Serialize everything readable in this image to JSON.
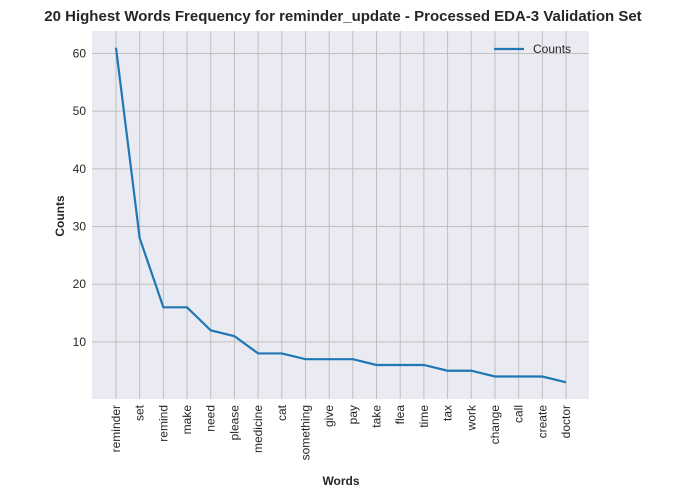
{
  "chart_data": {
    "type": "line",
    "title": "20 Highest Words Frequency for reminder_update - Processed EDA-3 Validation Set",
    "xlabel": "Words",
    "ylabel": "Counts",
    "categories": [
      "reminder",
      "set",
      "remind",
      "make",
      "need",
      "please",
      "medicine",
      "cat",
      "something",
      "give",
      "pay",
      "take",
      "flea",
      "time",
      "tax",
      "work",
      "change",
      "call",
      "create",
      "doctor"
    ],
    "series": [
      {
        "name": "Counts",
        "values": [
          61,
          28,
          16,
          16,
          12,
          11,
          8,
          8,
          7,
          7,
          7,
          6,
          6,
          6,
          5,
          5,
          4,
          4,
          4,
          3
        ]
      }
    ],
    "yticks": [
      10,
      20,
      30,
      40,
      50,
      60
    ],
    "ylim": [
      0.1,
      63.9
    ],
    "grid": true,
    "legend": "top-right",
    "colors": {
      "line": "#1f77b4",
      "plot_bg": "#eaeaf2",
      "grid": "#bfbfbf"
    }
  }
}
